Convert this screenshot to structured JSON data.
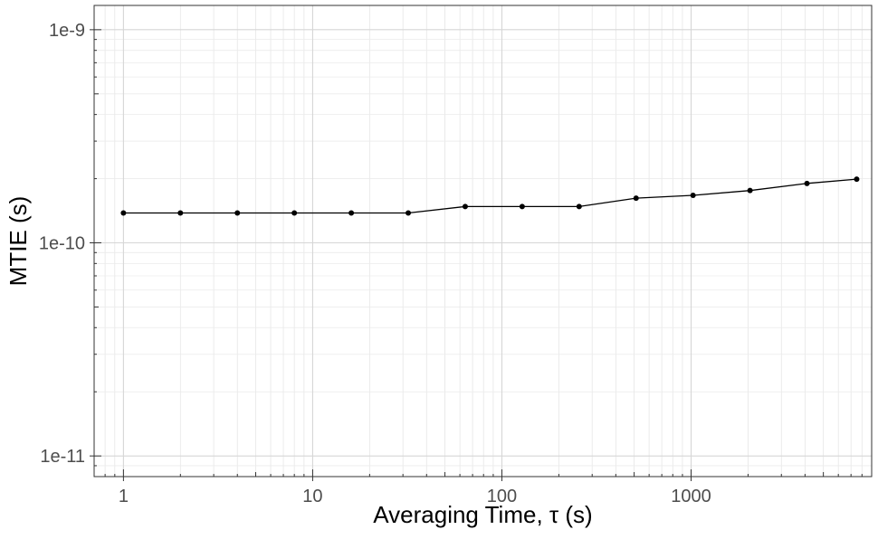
{
  "chart_data": {
    "type": "line",
    "title": "",
    "xlabel": "Averaging Time, τ (s)",
    "ylabel": "MTIE (s)",
    "x_scale": "log",
    "y_scale": "log",
    "xlim": [
      0.7,
      9000
    ],
    "ylim": [
      8e-12,
      1.3e-09
    ],
    "grid": true,
    "legend": "none",
    "x_ticks": [
      {
        "value": 1,
        "label": "1"
      },
      {
        "value": 10,
        "label": "10"
      },
      {
        "value": 100,
        "label": "100"
      },
      {
        "value": 1000,
        "label": "1000"
      }
    ],
    "y_ticks": [
      {
        "value": 1e-11,
        "label": "1e-11"
      },
      {
        "value": 1e-10,
        "label": "1e-10"
      },
      {
        "value": 1e-09,
        "label": "1e-9"
      }
    ],
    "series": [
      {
        "color": "#000000",
        "x": [
          1,
          2,
          4,
          8,
          16,
          32,
          64,
          128,
          256,
          512,
          1024,
          2048,
          4096,
          7500
        ],
        "y": [
          1.38e-10,
          1.38e-10,
          1.38e-10,
          1.38e-10,
          1.38e-10,
          1.38e-10,
          1.48e-10,
          1.48e-10,
          1.48e-10,
          1.62e-10,
          1.67e-10,
          1.76e-10,
          1.9e-10,
          1.99e-10
        ]
      }
    ]
  }
}
